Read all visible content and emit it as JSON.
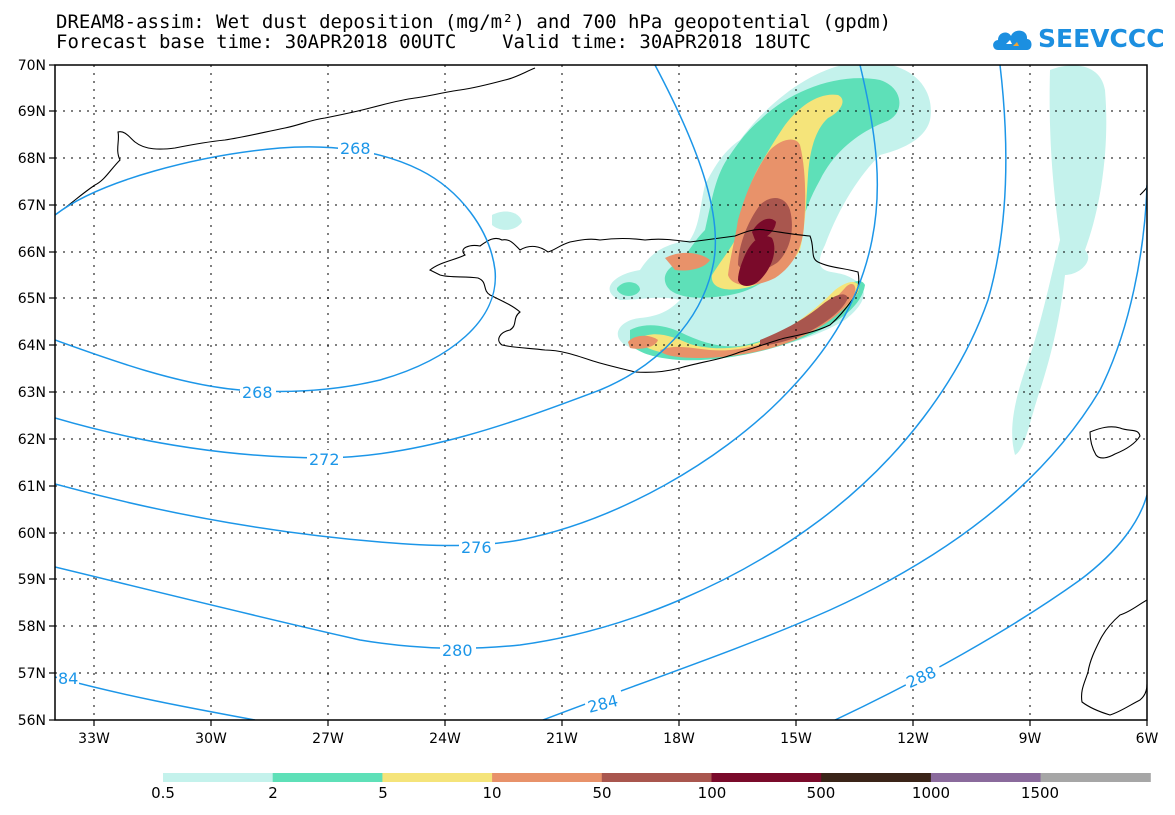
{
  "header": {
    "title_line1": "DREAM8-assim: Wet dust deposition (mg/m²) and 700 hPa geopotential (gpdm)",
    "title_line2": "Forecast base time: 30APR2018 00UTC    Valid time: 30APR2018 18UTC"
  },
  "logo": {
    "text": "SEEVCCC",
    "icon": "cloud-icon",
    "color": "#1c8fe0"
  },
  "map": {
    "lat_labels": [
      "56N",
      "57N",
      "58N",
      "59N",
      "60N",
      "61N",
      "62N",
      "63N",
      "64N",
      "65N",
      "66N",
      "67N",
      "68N",
      "69N",
      "70N"
    ],
    "lon_labels": [
      "33W",
      "30W",
      "27W",
      "24W",
      "21W",
      "18W",
      "15W",
      "12W",
      "9W",
      "6W"
    ],
    "contour_color": "#1c96e8",
    "contour_labels": [
      "268",
      "268",
      "272",
      "276",
      "280",
      "284",
      "84",
      "288"
    ]
  },
  "legend": {
    "labels": [
      "0.5",
      "2",
      "5",
      "10",
      "50",
      "100",
      "500",
      "1000",
      "1500"
    ],
    "colors": [
      "#c4f2ec",
      "#5ee0b8",
      "#f5e47a",
      "#e8926a",
      "#a9564e",
      "#7a0a2a",
      "#3a2418",
      "#8a6a9c",
      "#a6a6a6"
    ]
  }
}
